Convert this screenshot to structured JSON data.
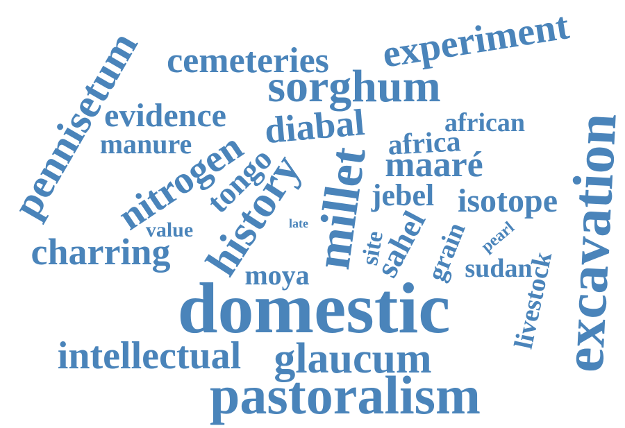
{
  "colors": {
    "word": "#4a84ba",
    "background": "#ffffff"
  },
  "words": {
    "domestic": "domestic",
    "pastoralism": "pastoralism",
    "glaucum": "glaucum",
    "intellectual": "intellectual",
    "millet": "millet",
    "history": "history",
    "sorghum": "sorghum",
    "excavation": "excavation",
    "pennisetum": "pennisetum",
    "cemeteries": "cemeteries",
    "experiment": "experiment",
    "nitrogen": "nitrogen",
    "charring": "charring",
    "evidence": "evidence",
    "diabal": "diabal",
    "maare": "maaré",
    "isotope": "isotope",
    "tongo": "tongo",
    "manure": "manure",
    "african": "african",
    "africa": "africa",
    "jebel": "jebel",
    "sahel": "sahel",
    "site": "site",
    "moya": "moya",
    "value": "value",
    "late": "late",
    "grain": "grain",
    "pearl": "pearl",
    "sudan": "sudan",
    "livestock": "livestock"
  }
}
